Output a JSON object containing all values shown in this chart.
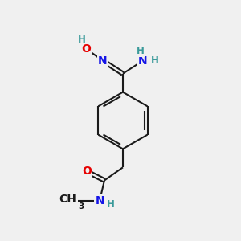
{
  "bg_color": "#f0f0f0",
  "bond_color": "#1a1a1a",
  "bond_width": 1.5,
  "atom_colors": {
    "C": "#1a1a1a",
    "N": "#1414e6",
    "O": "#e60000",
    "H": "#3a9a9a"
  },
  "font_size_atom": 10,
  "font_size_H": 8.5,
  "font_size_sub": 7.5
}
